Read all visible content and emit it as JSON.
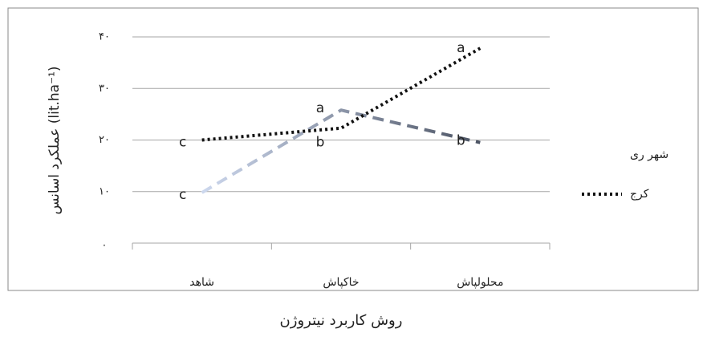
{
  "chart_data": {
    "type": "line",
    "x_label": "روش کاربرد نیتروژن",
    "y_label": "عملکرد اسانس (lit.ha⁻¹)",
    "categories": [
      "شاهد",
      "خاکپاش",
      "محلولپاش"
    ],
    "series": [
      {
        "name": "شهر ری",
        "color": [
          "#cdd8ee",
          "#4b5363"
        ],
        "dash": "14 8",
        "values": [
          9.8,
          25.8,
          19.5
        ],
        "letters": [
          "c",
          "a",
          "b"
        ]
      },
      {
        "name": "کرج",
        "color": "#111111",
        "dash": "3 4",
        "values": [
          20,
          22.3,
          37.8
        ],
        "letters": [
          "c",
          "b",
          "a"
        ]
      }
    ],
    "ylim": [
      0,
      40
    ],
    "yticks": [
      {
        "value": 0,
        "label": "."
      },
      {
        "value": 10,
        "label": "۱۰"
      },
      {
        "value": 20,
        "label": "۲۰"
      },
      {
        "value": 30,
        "label": "۳۰"
      },
      {
        "value": 40,
        "label": "۴۰"
      }
    ],
    "grid": true,
    "legend": "right"
  }
}
